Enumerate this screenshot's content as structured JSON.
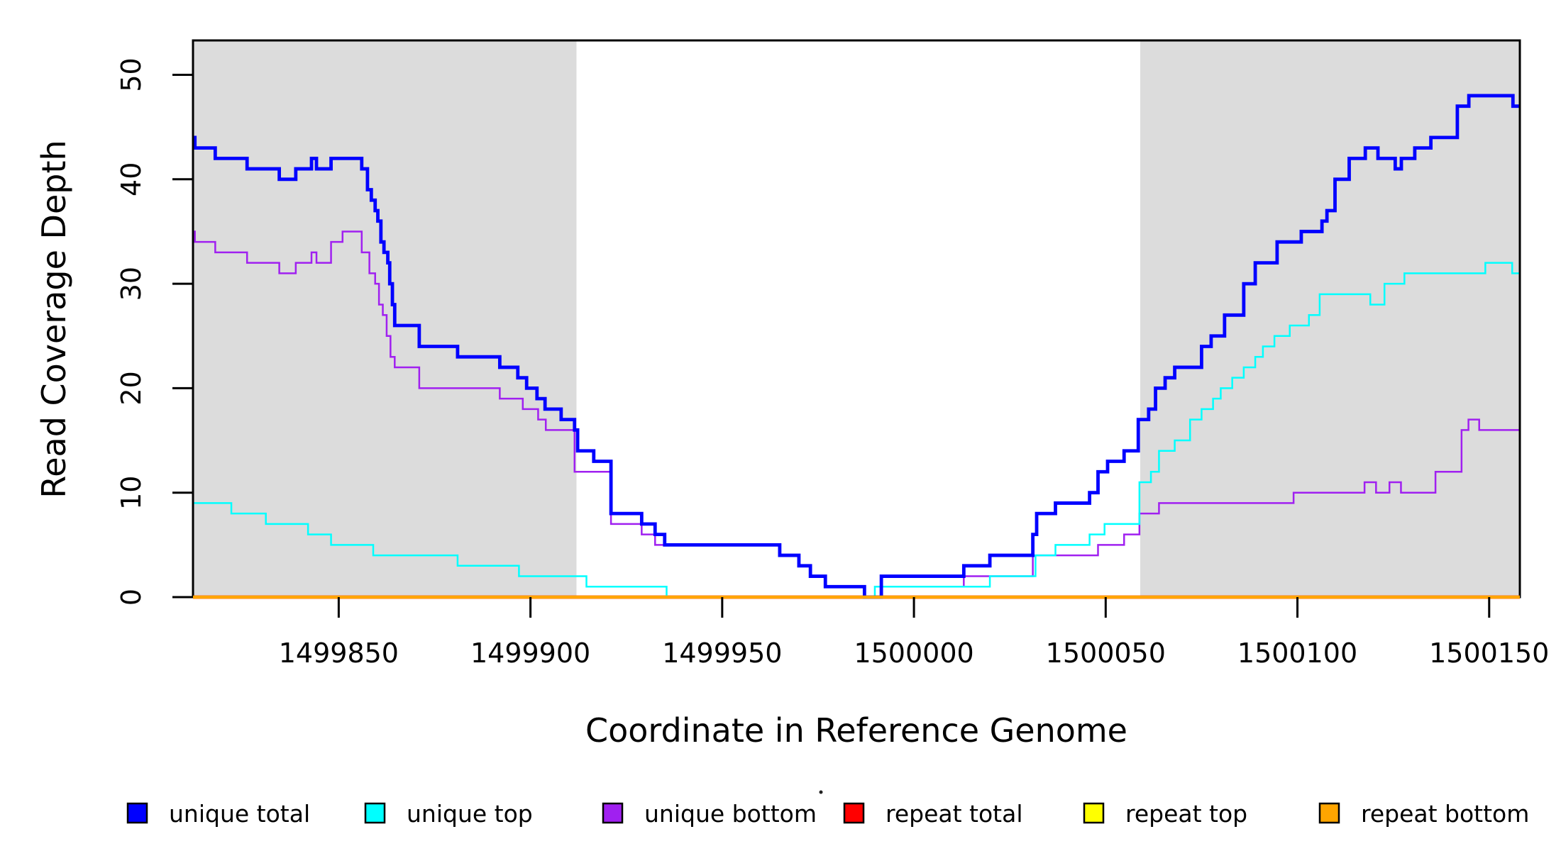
{
  "chart_data": {
    "type": "line",
    "subtype": "step-coverage-plot",
    "title": "",
    "xlabel": "Coordinate in Reference Genome",
    "ylabel": "Read Coverage Depth",
    "xlim": [
      1499812,
      1500158
    ],
    "ylim": [
      0,
      53.3
    ],
    "grid": false,
    "x_ticks": [
      {
        "value": 1499850,
        "label": "1499850"
      },
      {
        "value": 1499900,
        "label": "1499900"
      },
      {
        "value": 1499950,
        "label": "1499950"
      },
      {
        "value": 1500000,
        "label": "1500000"
      },
      {
        "value": 1500050,
        "label": "1500050"
      },
      {
        "value": 1500100,
        "label": "1500100"
      },
      {
        "value": 1500150,
        "label": "1500150"
      }
    ],
    "y_ticks": [
      {
        "value": 0,
        "label": "0"
      },
      {
        "value": 10,
        "label": "10"
      },
      {
        "value": 20,
        "label": "20"
      },
      {
        "value": 30,
        "label": "30"
      },
      {
        "value": 40,
        "label": "40"
      },
      {
        "value": 50,
        "label": "50"
      }
    ],
    "shaded_regions": [
      {
        "name": "left-repeat-flank",
        "x0": 1499812,
        "x1": 1499912,
        "color": "#DCDCDC"
      },
      {
        "name": "right-repeat-flank",
        "x0": 1500059,
        "x1": 1500158,
        "color": "#DCDCDC"
      }
    ],
    "series": [
      {
        "name": "repeat total",
        "color": "#FF0000",
        "role": "total",
        "steps": [
          [
            1499812,
            0
          ]
        ]
      },
      {
        "name": "repeat top",
        "color": "#FFFF00",
        "role": "top",
        "steps": [
          [
            1499812,
            0
          ]
        ]
      },
      {
        "name": "unique bottom",
        "color": "#A020F0",
        "role": "bottom",
        "steps": [
          [
            1499812,
            35
          ],
          [
            1499812.5,
            34
          ],
          [
            1499817.8,
            33
          ],
          [
            1499826.1,
            32
          ],
          [
            1499834.5,
            31
          ],
          [
            1499838.8,
            32
          ],
          [
            1499842.9,
            33
          ],
          [
            1499844.2,
            32
          ],
          [
            1499848,
            34
          ],
          [
            1499851,
            35
          ],
          [
            1499856,
            33
          ],
          [
            1499858,
            31
          ],
          [
            1499859.5,
            30
          ],
          [
            1499860.5,
            28
          ],
          [
            1499861.5,
            27
          ],
          [
            1499862.5,
            25
          ],
          [
            1499863.5,
            23
          ],
          [
            1499864.6,
            22
          ],
          [
            1499871,
            20
          ],
          [
            1499892,
            19
          ],
          [
            1499898,
            18
          ],
          [
            1499902,
            17
          ],
          [
            1499904,
            16
          ],
          [
            1499911.5,
            12
          ],
          [
            1499921,
            7
          ],
          [
            1499929,
            6
          ],
          [
            1499932.5,
            5
          ],
          [
            1499965,
            4
          ],
          [
            1499970,
            3
          ],
          [
            1499973,
            2
          ],
          [
            1499976.9,
            1
          ],
          [
            1499987.1,
            0
          ],
          [
            1499991.3,
            1
          ],
          [
            1500013,
            2
          ],
          [
            1500031,
            4
          ],
          [
            1500048,
            5
          ],
          [
            1500054.8,
            6
          ],
          [
            1500058.8,
            8
          ],
          [
            1500063.9,
            9
          ],
          [
            1500099,
            10
          ],
          [
            1500117.5,
            11
          ],
          [
            1500120.5,
            10
          ],
          [
            1500124,
            11
          ],
          [
            1500127,
            10
          ],
          [
            1500136,
            12
          ],
          [
            1500142.8,
            16
          ],
          [
            1500144.6,
            17
          ],
          [
            1500147.4,
            16
          ]
        ]
      },
      {
        "name": "unique top",
        "color": "#00FFFF",
        "role": "top",
        "steps": [
          [
            1499812,
            9
          ],
          [
            1499822,
            8
          ],
          [
            1499831,
            7
          ],
          [
            1499842,
            6
          ],
          [
            1499848,
            5
          ],
          [
            1499859,
            4
          ],
          [
            1499881,
            3
          ],
          [
            1499897,
            2
          ],
          [
            1499914.6,
            1
          ],
          [
            1499935.5,
            0
          ],
          [
            1499989.8,
            1
          ],
          [
            1500019.8,
            2
          ],
          [
            1500031.7,
            4
          ],
          [
            1500036.9,
            5
          ],
          [
            1500045.8,
            6
          ],
          [
            1500049.7,
            7
          ],
          [
            1500058.8,
            11
          ],
          [
            1500061.8,
            12
          ],
          [
            1500063.9,
            14
          ],
          [
            1500068,
            15
          ],
          [
            1500072,
            17
          ],
          [
            1500075,
            18
          ],
          [
            1500078,
            19
          ],
          [
            1500080,
            20
          ],
          [
            1500083,
            21
          ],
          [
            1500086,
            22
          ],
          [
            1500089,
            23
          ],
          [
            1500091,
            24
          ],
          [
            1500094,
            25
          ],
          [
            1500098,
            26
          ],
          [
            1500103,
            27
          ],
          [
            1500105.8,
            29
          ],
          [
            1500119,
            28
          ],
          [
            1500122.7,
            30
          ],
          [
            1500127.9,
            31
          ],
          [
            1500149,
            32
          ],
          [
            1500156,
            31
          ]
        ]
      },
      {
        "name": "unique total",
        "color": "#0000FF",
        "role": "total",
        "steps": [
          [
            1499812,
            44
          ],
          [
            1499812.5,
            43
          ],
          [
            1499817.8,
            42
          ],
          [
            1499826.1,
            41
          ],
          [
            1499834.5,
            40
          ],
          [
            1499838.8,
            41
          ],
          [
            1499842.9,
            42
          ],
          [
            1499844.2,
            41
          ],
          [
            1499848,
            42
          ],
          [
            1499856,
            41
          ],
          [
            1499857.5,
            39
          ],
          [
            1499858.5,
            38
          ],
          [
            1499859.5,
            37
          ],
          [
            1499860.2,
            36
          ],
          [
            1499861,
            34
          ],
          [
            1499861.8,
            33
          ],
          [
            1499862.8,
            32
          ],
          [
            1499863.3,
            30
          ],
          [
            1499864,
            28
          ],
          [
            1499864.6,
            26
          ],
          [
            1499871,
            24
          ],
          [
            1499881,
            23
          ],
          [
            1499892,
            22
          ],
          [
            1499896.7,
            21
          ],
          [
            1499899,
            20
          ],
          [
            1499901.7,
            19
          ],
          [
            1499903.8,
            18
          ],
          [
            1499908,
            17
          ],
          [
            1499911.5,
            16
          ],
          [
            1499912.3,
            14
          ],
          [
            1499916.5,
            13
          ],
          [
            1499921,
            8
          ],
          [
            1499929,
            7
          ],
          [
            1499932.5,
            6
          ],
          [
            1499935,
            5
          ],
          [
            1499965,
            4
          ],
          [
            1499970,
            3
          ],
          [
            1499973,
            2
          ],
          [
            1499976.9,
            1
          ],
          [
            1499987.1,
            0
          ],
          [
            1499991.5,
            2
          ],
          [
            1500013,
            3
          ],
          [
            1500019.8,
            4
          ],
          [
            1500031,
            6
          ],
          [
            1500032,
            8
          ],
          [
            1500036.9,
            9
          ],
          [
            1500045.8,
            10
          ],
          [
            1500048,
            12
          ],
          [
            1500050.5,
            13
          ],
          [
            1500054.8,
            14
          ],
          [
            1500058.5,
            17
          ],
          [
            1500061.2,
            18
          ],
          [
            1500063,
            20
          ],
          [
            1500065.5,
            21
          ],
          [
            1500068,
            22
          ],
          [
            1500075,
            24
          ],
          [
            1500077.5,
            25
          ],
          [
            1500081,
            27
          ],
          [
            1500086,
            30
          ],
          [
            1500089,
            32
          ],
          [
            1500094.7,
            34
          ],
          [
            1500101,
            35
          ],
          [
            1500106.4,
            36
          ],
          [
            1500107.7,
            37
          ],
          [
            1500109.8,
            40
          ],
          [
            1500113.5,
            42
          ],
          [
            1500117.7,
            43
          ],
          [
            1500121,
            42
          ],
          [
            1500125.5,
            41
          ],
          [
            1500127.1,
            42
          ],
          [
            1500130.6,
            43
          ],
          [
            1500134.8,
            44
          ],
          [
            1500141.7,
            47
          ],
          [
            1500144.7,
            48
          ],
          [
            1500156.2,
            47
          ]
        ]
      },
      {
        "name": "repeat bottom",
        "color": "#FFA500",
        "role": "bottom-overlay",
        "steps": [
          [
            1499812,
            0
          ]
        ]
      }
    ]
  },
  "legend": {
    "items": [
      {
        "label": "unique total",
        "color": "#0000FF"
      },
      {
        "label": "unique top",
        "color": "#00FFFF"
      },
      {
        "label": "unique bottom",
        "color": "#A020F0"
      },
      {
        "label": "repeat total",
        "color": "#FF0000"
      },
      {
        "label": "repeat top",
        "color": "#FFFF00"
      },
      {
        "label": "repeat bottom",
        "color": "#FFA500"
      }
    ]
  }
}
